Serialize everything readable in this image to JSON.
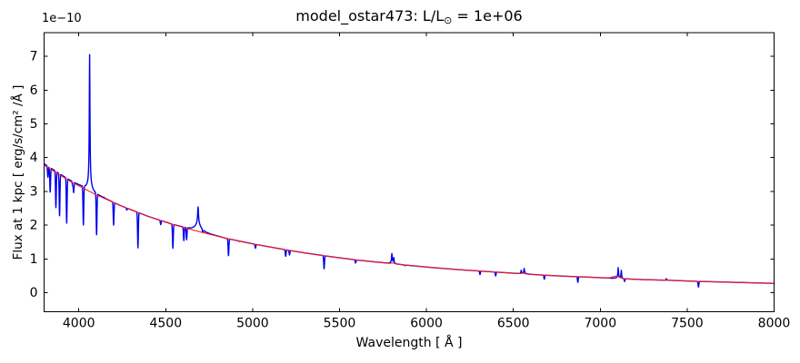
{
  "figure": {
    "title_pre": "model_ostar473: L/L",
    "title_sub": "⊙",
    "title_post": " = 1e+06",
    "xlabel": "Wavelength [ Å ]",
    "ylabel": "Flux at 1 kpc [ erg/s/cm² /Å ]",
    "offset_text": "1e−10"
  },
  "chart_data": {
    "type": "line",
    "title": "model_ostar473: L/L⊙ = 1e+06",
    "xlabel": "Wavelength [ Å ]",
    "ylabel": "Flux at 1 kpc [ erg/s/cm² /Å ]",
    "y_offset_label": "1e−10",
    "y_unit_factor": 1e-10,
    "xlim": [
      3800,
      8000
    ],
    "ylim": [
      -0.56,
      7.7
    ],
    "x_ticks": [
      4000,
      4500,
      5000,
      5500,
      6000,
      6500,
      7000,
      7500,
      8000
    ],
    "y_ticks": [
      0,
      1,
      2,
      3,
      4,
      5,
      6,
      7
    ],
    "grid": false,
    "legend": "none",
    "series": [
      {
        "name": "model-spectrum",
        "color": "#0000ee"
      },
      {
        "name": "smooth-continuum",
        "color": "#ff1a1a"
      }
    ],
    "continuum_points": [
      [
        3800,
        3.78
      ],
      [
        3950,
        3.3
      ],
      [
        4100,
        2.9
      ],
      [
        4250,
        2.56
      ],
      [
        4400,
        2.26
      ],
      [
        4550,
        2.01
      ],
      [
        4700,
        1.8
      ],
      [
        4850,
        1.61
      ],
      [
        5000,
        1.45
      ],
      [
        5150,
        1.31
      ],
      [
        5300,
        1.18
      ],
      [
        5450,
        1.07
      ],
      [
        5600,
        0.97
      ],
      [
        5750,
        0.89
      ],
      [
        5900,
        0.81
      ],
      [
        6050,
        0.74
      ],
      [
        6200,
        0.68
      ],
      [
        6350,
        0.63
      ],
      [
        6500,
        0.58
      ],
      [
        6650,
        0.53
      ],
      [
        6800,
        0.49
      ],
      [
        6950,
        0.46
      ],
      [
        7100,
        0.42
      ],
      [
        7250,
        0.39
      ],
      [
        7400,
        0.37
      ],
      [
        7550,
        0.34
      ],
      [
        7700,
        0.32
      ],
      [
        7850,
        0.3
      ],
      [
        8000,
        0.28
      ]
    ],
    "blue_uplift": {
      "amp": 0.04,
      "end": 4200,
      "span": 400
    },
    "absorption_lines": [
      {
        "wl": 3822,
        "flux": 3.42
      },
      {
        "wl": 3835,
        "flux": 2.98
      },
      {
        "wl": 3868,
        "flux": 2.52
      },
      {
        "wl": 3889,
        "flux": 2.28
      },
      {
        "wl": 3930,
        "flux": 2.06
      },
      {
        "wl": 3964,
        "flux": 3.18
      },
      {
        "wl": 3970,
        "flux": 2.96
      },
      {
        "wl": 4026,
        "flux": 1.96
      },
      {
        "wl": 4102,
        "flux": 1.68
      },
      {
        "wl": 4144,
        "flux": 2.82
      },
      {
        "wl": 4200,
        "flux": 2.0
      },
      {
        "wl": 4276,
        "flux": 2.45
      },
      {
        "wl": 4340,
        "flux": 1.33
      },
      {
        "wl": 4471,
        "flux": 2.02
      },
      {
        "wl": 4511,
        "flux": 2.08
      },
      {
        "wl": 4541,
        "flux": 1.32
      },
      {
        "wl": 4604,
        "flux": 1.53
      },
      {
        "wl": 4620,
        "flux": 1.55
      },
      {
        "wl": 4713,
        "flux": 1.7
      },
      {
        "wl": 4861,
        "flux": 1.1
      },
      {
        "wl": 4922,
        "flux": 1.52
      },
      {
        "wl": 5016,
        "flux": 1.32
      },
      {
        "wl": 5190,
        "flux": 1.08
      },
      {
        "wl": 5212,
        "flux": 1.12
      },
      {
        "wl": 5411,
        "flux": 0.71
      },
      {
        "wl": 5592,
        "flux": 0.88
      },
      {
        "wl": 5734,
        "flux": 0.9
      },
      {
        "wl": 5876,
        "flux": 0.8
      },
      {
        "wl": 6308,
        "flux": 0.54
      },
      {
        "wl": 6398,
        "flux": 0.5
      },
      {
        "wl": 6678,
        "flux": 0.4
      },
      {
        "wl": 6871,
        "flux": 0.31
      },
      {
        "wl": 7140,
        "flux": 0.33
      },
      {
        "wl": 7565,
        "flux": 0.17
      }
    ],
    "emission_lines": [
      {
        "wl": 4062,
        "flux": 7.05,
        "gamma": 2.2,
        "wing_amp": 0.22,
        "wing_gamma": 15
      },
      {
        "wl": 4686,
        "flux": 2.54,
        "gamma": 3.0,
        "wing_amp": 0.23,
        "wing_gamma": 20
      },
      {
        "wl": 5801,
        "flux": 1.16,
        "gamma": 2.0,
        "wing_amp": 0.05,
        "wing_gamma": 8
      },
      {
        "wl": 5812,
        "flux": 1.02,
        "gamma": 2.0,
        "wing_amp": 0,
        "wing_gamma": 8
      },
      {
        "wl": 6545,
        "flux": 0.66,
        "gamma": 1.8,
        "wing_amp": 0,
        "wing_gamma": 8
      },
      {
        "wl": 6562,
        "flux": 0.72,
        "gamma": 2.0,
        "wing_amp": 0.03,
        "wing_gamma": 8
      },
      {
        "wl": 7103,
        "flux": 0.74,
        "gamma": 2.0,
        "wing_amp": 0.05,
        "wing_gamma": 10
      },
      {
        "wl": 7121,
        "flux": 0.65,
        "gamma": 2.0,
        "wing_amp": 0,
        "wing_gamma": 8
      },
      {
        "wl": 7380,
        "flux": 0.42,
        "gamma": 1.8,
        "wing_amp": 0,
        "wing_gamma": 8
      }
    ],
    "continuum_bumps": [
      {
        "wl": 7090,
        "amp": 0.07,
        "sigma": 20
      },
      {
        "wl": 5806,
        "amp": 0.025,
        "sigma": 9
      },
      {
        "wl": 6556,
        "amp": 0.02,
        "sigma": 9
      }
    ]
  }
}
